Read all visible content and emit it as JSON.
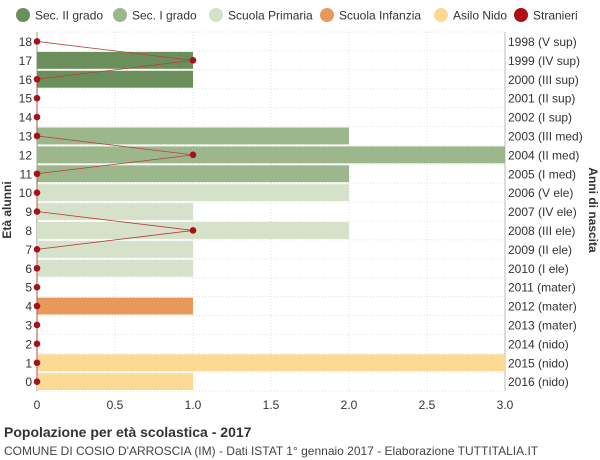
{
  "chart_data": {
    "type": "bar",
    "orientation": "horizontal",
    "legend": [
      {
        "name": "Sec. II grado",
        "color": "#6b8f5a"
      },
      {
        "name": "Sec. I grado",
        "color": "#9cb78c"
      },
      {
        "name": "Scuola Primaria",
        "color": "#d5e1c8"
      },
      {
        "name": "Scuola Infanzia",
        "color": "#e8995a"
      },
      {
        "name": "Asilo Nido",
        "color": "#fcd995"
      },
      {
        "name": "Stranieri",
        "color": "#b00e10"
      }
    ],
    "legend_position": "top",
    "ages": [
      18,
      17,
      16,
      15,
      14,
      13,
      12,
      11,
      10,
      9,
      8,
      7,
      6,
      5,
      4,
      3,
      2,
      1,
      0
    ],
    "birth_years": [
      "1998 (V sup)",
      "1999 (IV sup)",
      "2000 (III sup)",
      "2001 (II sup)",
      "2002 (I sup)",
      "2003 (III med)",
      "2004 (II med)",
      "2005 (I med)",
      "2006 (V ele)",
      "2007 (IV ele)",
      "2008 (III ele)",
      "2009 (II ele)",
      "2010 (I ele)",
      "2011 (mater)",
      "2012 (mater)",
      "2013 (mater)",
      "2014 (nido)",
      "2015 (nido)",
      "2016 (nido)"
    ],
    "values": [
      0,
      1,
      1,
      0,
      0,
      2,
      3,
      2,
      2,
      1,
      2,
      1,
      1,
      0,
      1,
      0,
      0,
      3,
      1
    ],
    "categories_school": [
      "Sec. II grado",
      "Sec. II grado",
      "Sec. II grado",
      "Sec. II grado",
      "Sec. II grado",
      "Sec. I grado",
      "Sec. I grado",
      "Sec. I grado",
      "Scuola Primaria",
      "Scuola Primaria",
      "Scuola Primaria",
      "Scuola Primaria",
      "Scuola Primaria",
      "Scuola Infanzia",
      "Scuola Infanzia",
      "Scuola Infanzia",
      "Asilo Nido",
      "Asilo Nido",
      "Asilo Nido"
    ],
    "stranieri": [
      0,
      1,
      0,
      0,
      0,
      0,
      1,
      0,
      0,
      0,
      1,
      0,
      0,
      0,
      0,
      0,
      0,
      0,
      0
    ],
    "xlim": [
      0,
      3
    ],
    "xticks": [
      "0",
      "0.5",
      "1.0",
      "1.5",
      "2.0",
      "2.5",
      "3.0"
    ],
    "ylabel_left": "Età alunni",
    "ylabel_right": "Anni di nascita",
    "grid": true
  },
  "caption": {
    "title": "Popolazione per età scolastica - 2017",
    "subtitle": "COMUNE DI COSIO D'ARROSCIA (IM) - Dati ISTAT 1° gennaio 2017 - Elaborazione TUTTITALIA.IT"
  }
}
